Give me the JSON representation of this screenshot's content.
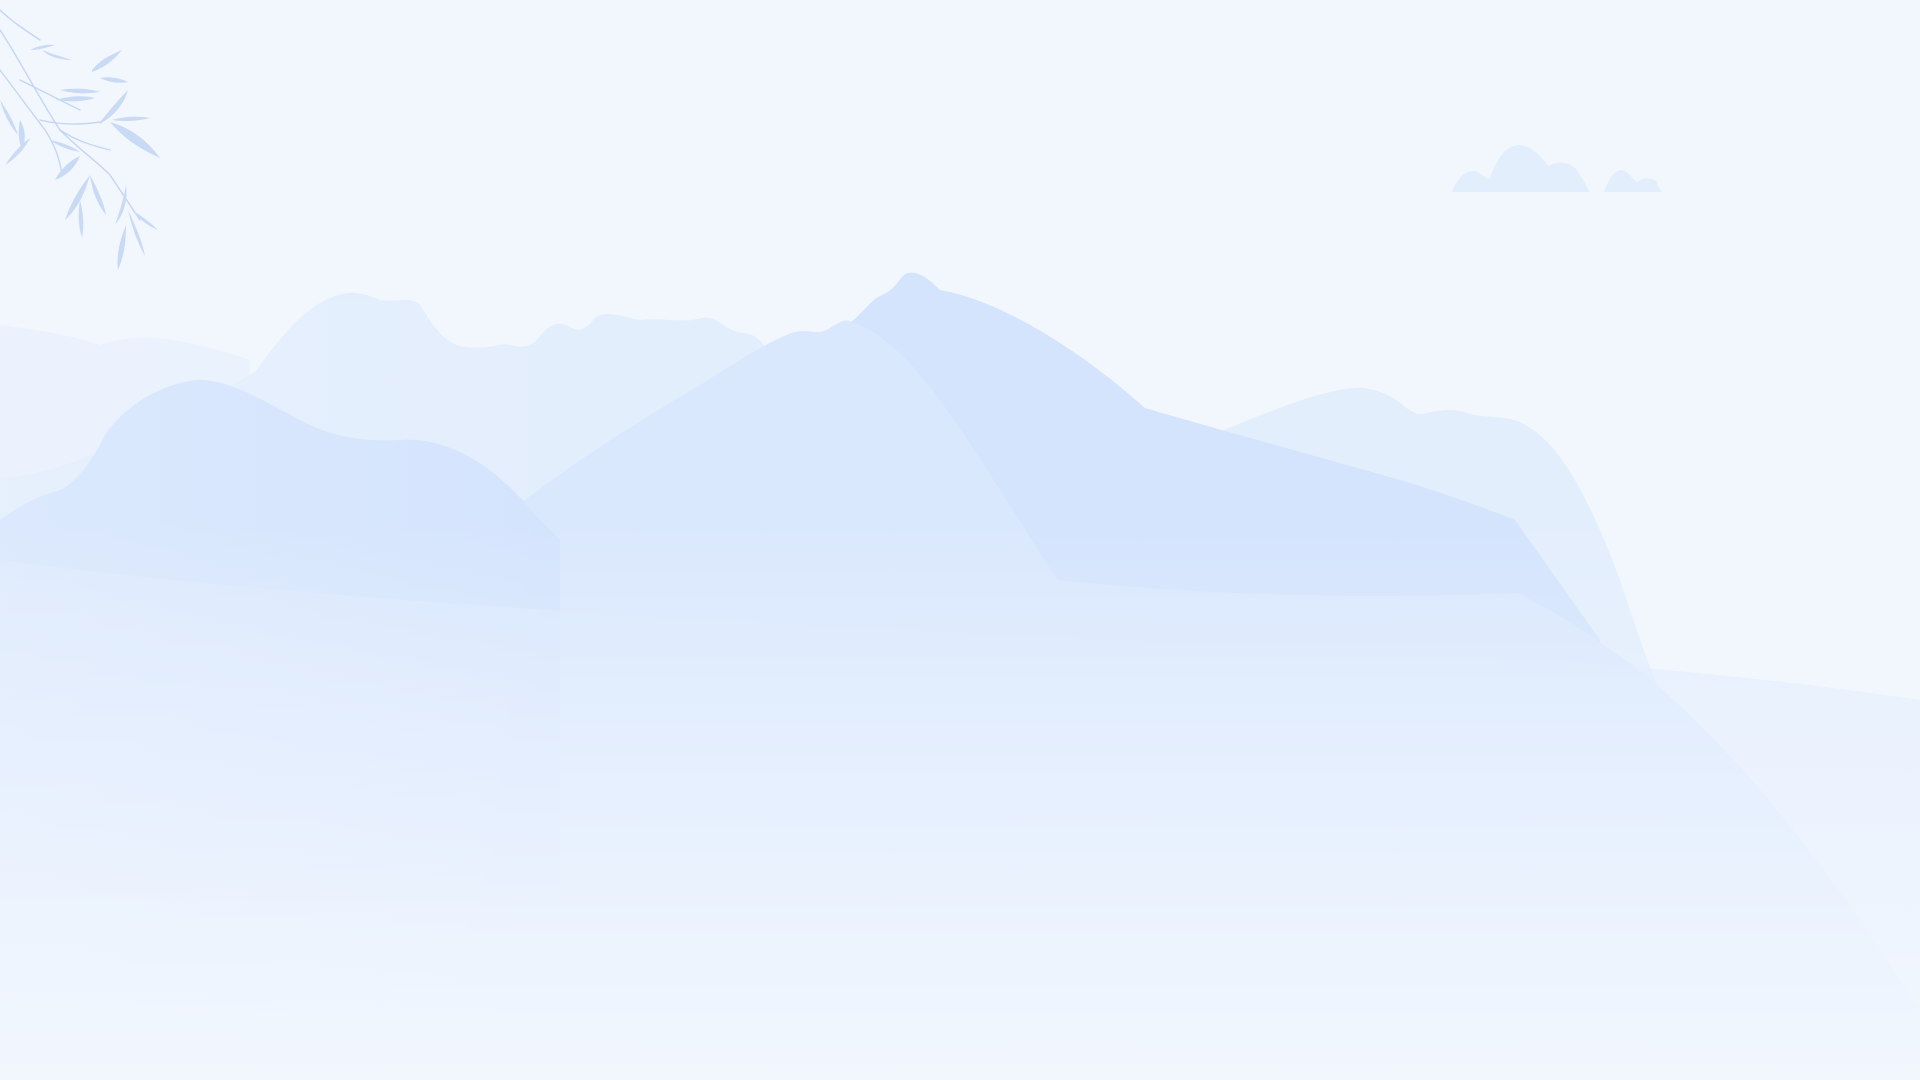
{
  "scene": {
    "background_color": "#f2f7fe",
    "mountain_colors": {
      "far": "#e3eefd",
      "mid": "#d9e8fd",
      "near": "#d4e4fd",
      "haze": "#f2f7fe"
    },
    "cloud_color": "#e3eefd",
    "bamboo_color": "#c4d6f3",
    "icons": [
      "cloud-icon",
      "bamboo-branch-icon"
    ]
  }
}
